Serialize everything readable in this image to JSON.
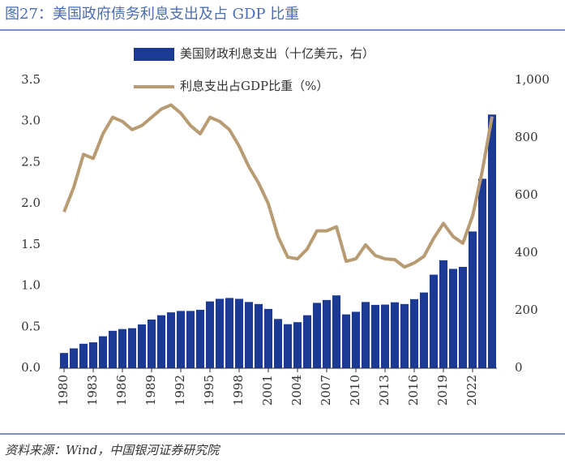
{
  "chart_data": {
    "type": "bar",
    "title": "图27：美国政府债务利息支出及占 GDP 比重",
    "source": "资料来源：Wind，中国银河证券研究院",
    "categories": [
      "1980",
      null,
      null,
      "1983",
      null,
      null,
      "1986",
      null,
      null,
      "1989",
      null,
      null,
      "1992",
      null,
      null,
      "1995",
      null,
      null,
      "1998",
      null,
      null,
      "2001",
      null,
      null,
      "2004",
      null,
      null,
      "2007",
      null,
      null,
      "2010",
      null,
      null,
      "2013",
      null,
      null,
      "2016",
      null,
      null,
      "2019",
      null,
      null,
      "2022",
      null,
      null
    ],
    "series": [
      {
        "name": "美国财政利息支出（十亿美元，右）",
        "type": "bar",
        "axis": "y2",
        "color": "#1b3a94",
        "values": [
          53,
          69,
          85,
          90,
          111,
          130,
          136,
          139,
          152,
          169,
          184,
          194,
          199,
          199,
          203,
          232,
          241,
          244,
          241,
          230,
          223,
          206,
          171,
          153,
          160,
          184,
          227,
          237,
          253,
          187,
          196,
          230,
          220,
          221,
          229,
          223,
          240,
          263,
          325,
          375,
          345,
          352,
          475,
          658,
          881
        ]
      },
      {
        "name": "利息支出占GDP比重（%）",
        "type": "line",
        "axis": "y",
        "color": "#b89b72",
        "values": [
          1.9,
          2.2,
          2.6,
          2.55,
          2.85,
          3.05,
          3.0,
          2.9,
          2.95,
          3.05,
          3.15,
          3.2,
          3.1,
          2.95,
          2.85,
          3.05,
          3.0,
          2.9,
          2.7,
          2.45,
          2.25,
          2.0,
          1.6,
          1.35,
          1.33,
          1.45,
          1.67,
          1.67,
          1.72,
          1.3,
          1.33,
          1.5,
          1.37,
          1.33,
          1.32,
          1.23,
          1.28,
          1.36,
          1.58,
          1.76,
          1.6,
          1.52,
          1.85,
          2.4,
          3.06
        ]
      }
    ],
    "ylim": [
      0,
      3.5
    ],
    "yticks": [
      {
        "value": 0,
        "label": "0.0"
      },
      0.5,
      {
        "value": 1,
        "label": "1.0"
      },
      1.5,
      {
        "value": 2,
        "label": "2.0"
      },
      2.5,
      {
        "value": 3,
        "label": "3.0"
      },
      3.5
    ],
    "y2lim": [
      0,
      1000
    ],
    "y2ticks": [
      0,
      200,
      400,
      600,
      800,
      {
        "value": 1000,
        "label": "1,000"
      }
    ]
  }
}
